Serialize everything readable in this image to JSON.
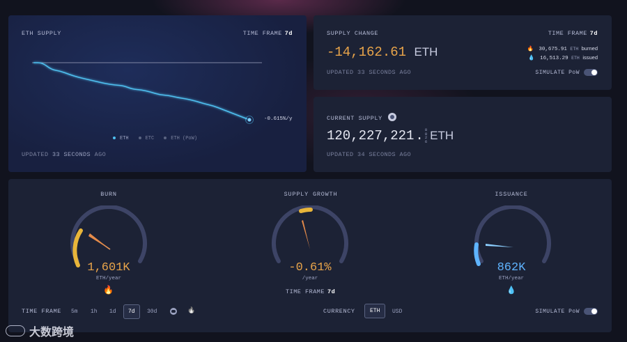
{
  "eth_supply": {
    "label": "ETH SUPPLY",
    "time_frame_label": "TIME FRAME",
    "time_frame_value": "7d",
    "end_label": "-0.615%/y",
    "legend": [
      "ETH",
      "ETC",
      "ETH (PoW)"
    ],
    "updated_prefix": "UPDATED",
    "updated_value": "33 SECONDS",
    "updated_suffix": "AGO"
  },
  "supply_change": {
    "label": "SUPPLY CHANGE",
    "time_frame_label": "TIME FRAME",
    "time_frame_value": "7d",
    "value": "-14,162.61",
    "unit": "ETH",
    "burned_value": "30,675.91",
    "burned_unit": "ETH",
    "burned_label": "burned",
    "issued_value": "16,513.29",
    "issued_unit": "ETH",
    "issued_label": "issued",
    "updated": "UPDATED 33 SECONDS AGO",
    "simulate_label": "SIMULATE PoW"
  },
  "current_supply": {
    "label": "CURRENT SUPPLY",
    "value": "120,227,221",
    "decimals": [
      "8",
      "0",
      "2",
      "6"
    ],
    "unit": "ETH",
    "updated": "UPDATED 34 SECONDS AGO"
  },
  "gauges": {
    "burn": {
      "title": "BURN",
      "value": "1,601K",
      "unit": "ETH/year"
    },
    "growth": {
      "title": "SUPPLY GROWTH",
      "value": "-0.61%",
      "unit": "/year",
      "time_frame_label": "TIME FRAME",
      "time_frame_value": "7d"
    },
    "issuance": {
      "title": "ISSUANCE",
      "value": "862K",
      "unit": "ETH/year"
    }
  },
  "bottom_bar": {
    "time_frame_label": "TIME FRAME",
    "options": [
      "5m",
      "1h",
      "1d",
      "7d",
      "30d"
    ],
    "selected": "7d",
    "currency_label": "CURRENCY",
    "currencies": [
      "ETH",
      "USD"
    ],
    "currency_selected": "ETH",
    "simulate_label": "SIMULATE PoW"
  },
  "watermark": {
    "text": "大数跨境"
  },
  "chart_data": {
    "type": "line",
    "title": "",
    "xlabel": "",
    "ylabel": "",
    "series": [
      {
        "name": "ETH",
        "values": [
          100,
          100,
          99,
          98.8,
          98.3,
          97.9,
          97.6,
          97.3,
          97,
          96.8,
          96.7,
          96.2,
          96.1,
          95.8,
          95.4,
          95.3,
          95,
          94.8,
          94.5,
          94.1,
          93.8,
          93.3,
          92.8,
          92.3,
          91.8
        ]
      }
    ],
    "reference_line": 100,
    "grid": false,
    "legend_position": "bottom"
  },
  "colors": {
    "accent_orange": "#e8a44a",
    "accent_blue": "#5fb4ff",
    "eth_line": "#4fc0f0",
    "burn_arc": "#e8b53a",
    "gauge_track": "#3d4466"
  }
}
